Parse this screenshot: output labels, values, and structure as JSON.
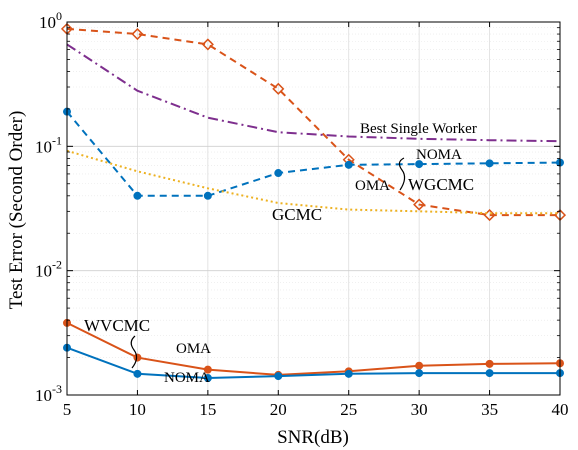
{
  "chart_data": {
    "type": "line",
    "xlabel": "SNR(dB)",
    "ylabel": "Test Error (Second Order)",
    "xlim": [
      5,
      40
    ],
    "ylim": [
      0.001,
      1
    ],
    "yscale": "log",
    "grid": true,
    "x_ticks": [
      5,
      10,
      15,
      20,
      25,
      30,
      35,
      40
    ],
    "y_tick_labels": [
      {
        "base": "10",
        "exp": "-3"
      },
      {
        "base": "10",
        "exp": "-2"
      },
      {
        "base": "10",
        "exp": "-1"
      },
      {
        "base": "10",
        "exp": "0"
      }
    ],
    "x": [
      5,
      10,
      15,
      20,
      25,
      30,
      35,
      40
    ],
    "series": [
      {
        "key": "wgcmc_oma",
        "color": "#D95319",
        "dash": "7,5",
        "marker": "diamond",
        "values": [
          0.88,
          0.8,
          0.66,
          0.29,
          0.078,
          0.034,
          0.028,
          0.028
        ]
      },
      {
        "key": "best_single",
        "color": "#7E2F8E",
        "dash": "10,4,2,4",
        "marker": "none",
        "values": [
          0.66,
          0.28,
          0.17,
          0.13,
          0.12,
          0.115,
          0.112,
          0.11
        ]
      },
      {
        "key": "wgcmc_noma",
        "color": "#0072BD",
        "dash": "7,5",
        "marker": "circle",
        "values": [
          0.19,
          0.04,
          0.04,
          0.061,
          0.071,
          0.072,
          0.073,
          0.074
        ]
      },
      {
        "key": "gcmc",
        "color": "#EDB120",
        "dash": "2,3",
        "marker": "none",
        "values": [
          0.092,
          0.063,
          0.046,
          0.035,
          0.031,
          0.03,
          0.029,
          0.029
        ]
      },
      {
        "key": "wvcmc_oma",
        "color": "#D95319",
        "dash": "",
        "marker": "circle",
        "values": [
          0.0038,
          0.002,
          0.0016,
          0.00145,
          0.00155,
          0.00172,
          0.00178,
          0.0018
        ]
      },
      {
        "key": "wvcmc_noma",
        "color": "#0072BD",
        "dash": "",
        "marker": "circle",
        "values": [
          0.0024,
          0.00148,
          0.00137,
          0.00142,
          0.00148,
          0.0015,
          0.0015,
          0.0015
        ]
      }
    ],
    "annotations": {
      "best_single": "Best Single Worker",
      "noma_top": "NOMA",
      "oma_top": "OMA",
      "wgcmc": "WGCMC",
      "gcmc": "GCMC",
      "wvcmc": "WVCMC",
      "oma_bottom": "OMA",
      "noma_bottom": "NOMA"
    }
  }
}
